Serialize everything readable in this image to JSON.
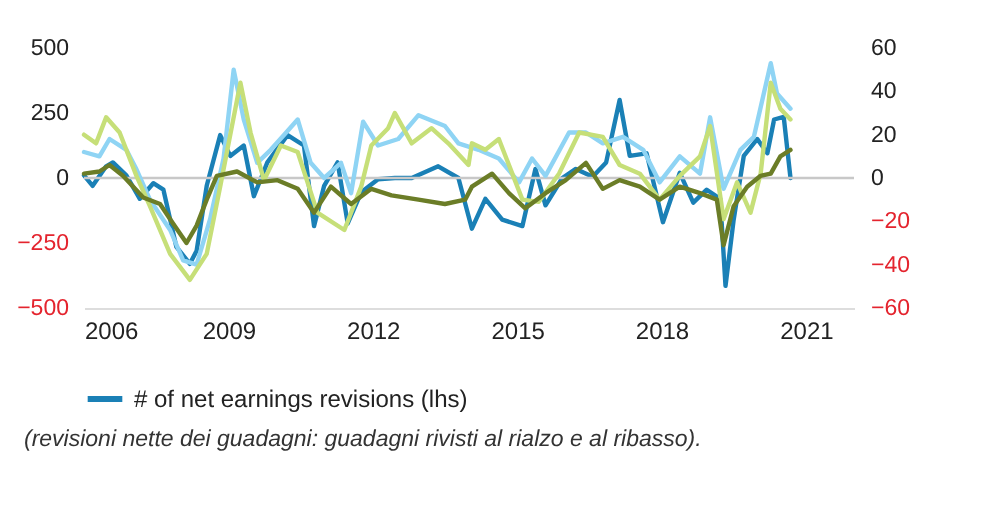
{
  "chart_data": {
    "type": "line",
    "xlim": [
      2006,
      2022
    ],
    "xticks": [
      2006,
      2009,
      2012,
      2015,
      2018,
      2021
    ],
    "ylim": [
      -500,
      500
    ],
    "yticks": [
      -500,
      -250,
      0,
      250,
      500
    ],
    "y2lim": [
      -60,
      60
    ],
    "y2ticks": [
      -60,
      -40,
      -20,
      0,
      20,
      40,
      60
    ],
    "legend": "bottom",
    "marker": "none",
    "line_style": "solid",
    "ref_lines": [
      {
        "axis": "y",
        "value": 0
      }
    ],
    "annotations": [
      "(revisioni nette dei guadagni: guadagni rivisti al rialzo e al ribasso)."
    ],
    "series": [
      {
        "name": "# of net earnings revisions (lhs)",
        "color": "#1a80b6",
        "axis": "y",
        "x": [
          2006.0,
          2006.18,
          2006.46,
          2006.6,
          2006.88,
          2007.16,
          2007.44,
          2007.65,
          2007.92,
          2008.2,
          2008.34,
          2008.55,
          2008.83,
          2009.04,
          2009.32,
          2009.53,
          2009.81,
          2010.23,
          2010.57,
          2010.78,
          2010.99,
          2011.27,
          2011.48,
          2011.76,
          2012.11,
          2012.46,
          2012.81,
          2013.36,
          2013.78,
          2014.06,
          2014.34,
          2014.69,
          2015.11,
          2015.38,
          2015.59,
          2015.94,
          2016.22,
          2016.57,
          2016.85,
          2017.13,
          2017.34,
          2017.69,
          2018.03,
          2018.38,
          2018.66,
          2018.94,
          2019.22,
          2019.33,
          2019.5,
          2019.71,
          2019.99,
          2020.2,
          2020.34,
          2020.54,
          2020.68
        ],
        "values": [
          10,
          -30,
          45,
          60,
          10,
          -80,
          -20,
          -45,
          -265,
          -330,
          -280,
          -30,
          165,
          85,
          125,
          -70,
          60,
          165,
          125,
          -185,
          -30,
          60,
          -175,
          -55,
          -5,
          0,
          0,
          45,
          0,
          -195,
          -80,
          -160,
          -185,
          35,
          -105,
          0,
          35,
          5,
          60,
          300,
          85,
          95,
          -170,
          20,
          -95,
          -45,
          -80,
          -415,
          -160,
          85,
          150,
          95,
          225,
          235,
          0
        ]
      },
      {
        "color": "#8fd4f4",
        "axis": "y2",
        "x": [
          2006.0,
          2006.32,
          2006.53,
          2006.88,
          2007.09,
          2007.37,
          2007.79,
          2008.06,
          2008.34,
          2008.62,
          2008.9,
          2009.11,
          2009.32,
          2009.6,
          2009.88,
          2010.16,
          2010.44,
          2010.71,
          2010.99,
          2011.34,
          2011.55,
          2011.8,
          2012.11,
          2012.53,
          2012.95,
          2013.5,
          2013.78,
          2014.2,
          2014.62,
          2015.04,
          2015.31,
          2015.59,
          2016.08,
          2016.43,
          2016.78,
          2017.2,
          2017.62,
          2017.96,
          2018.38,
          2018.8,
          2019.01,
          2019.29,
          2019.64,
          2019.92,
          2020.27,
          2020.4,
          2020.68
        ],
        "values": [
          12,
          10,
          18,
          13,
          4,
          -10,
          -24,
          -38,
          -40,
          -19,
          9,
          50,
          27,
          7,
          13,
          20,
          27,
          7,
          0,
          7,
          -7,
          26,
          15,
          18,
          29,
          24,
          16,
          13,
          9,
          -2,
          9,
          1,
          21,
          21,
          16,
          19,
          13,
          -2,
          10,
          2,
          28,
          -5,
          13,
          19,
          53,
          39,
          32
        ]
      },
      {
        "color": "#c6df78",
        "axis": "y2",
        "x": [
          2006.0,
          2006.25,
          2006.46,
          2006.74,
          2007.09,
          2007.37,
          2007.79,
          2008.2,
          2008.55,
          2008.83,
          2009.25,
          2009.46,
          2009.74,
          2010.09,
          2010.44,
          2010.85,
          2011.41,
          2011.76,
          2011.97,
          2012.32,
          2012.46,
          2012.81,
          2013.22,
          2013.57,
          2013.99,
          2014.06,
          2014.34,
          2014.62,
          2015.11,
          2015.45,
          2015.87,
          2016.29,
          2016.78,
          2017.13,
          2017.55,
          2017.96,
          2018.38,
          2018.8,
          2019.01,
          2019.29,
          2019.57,
          2019.85,
          2020.06,
          2020.27,
          2020.47,
          2020.68
        ],
        "values": [
          20,
          16,
          28,
          21,
          1,
          -13,
          -35,
          -47,
          -35,
          -4,
          44,
          21,
          -1,
          15,
          12,
          -16,
          -24,
          -4,
          15,
          23,
          30,
          16,
          23,
          16,
          6,
          16,
          13,
          18,
          -10,
          -11,
          2,
          21,
          19,
          6,
          2,
          -10,
          1,
          10,
          24,
          -19,
          -2,
          -16,
          2,
          44,
          32,
          27
        ]
      },
      {
        "color": "#6b7d27",
        "axis": "y2",
        "x": [
          2006.0,
          2006.32,
          2006.53,
          2006.81,
          2007.23,
          2007.58,
          2007.85,
          2008.13,
          2008.34,
          2008.55,
          2008.76,
          2009.18,
          2009.6,
          2010.02,
          2010.44,
          2010.78,
          2011.13,
          2011.55,
          2011.97,
          2012.39,
          2012.95,
          2013.5,
          2013.92,
          2014.06,
          2014.48,
          2014.83,
          2015.17,
          2015.59,
          2016.01,
          2016.43,
          2016.78,
          2017.13,
          2017.55,
          2017.96,
          2018.38,
          2018.8,
          2019.15,
          2019.29,
          2019.5,
          2019.78,
          2020.06,
          2020.27,
          2020.47,
          2020.68
        ],
        "values": [
          2,
          3,
          6,
          1,
          -9,
          -12,
          -21,
          -30,
          -22,
          -10,
          1,
          3,
          -2,
          -1,
          -5,
          -16,
          -4,
          -12,
          -5,
          -8,
          -10,
          -12,
          -10,
          -4,
          2,
          -7,
          -14,
          -7,
          -1,
          7,
          -5,
          -1,
          -4,
          -10,
          -4,
          -7,
          -10,
          -31,
          -13,
          -4,
          1,
          2,
          10,
          13
        ]
      }
    ]
  }
}
